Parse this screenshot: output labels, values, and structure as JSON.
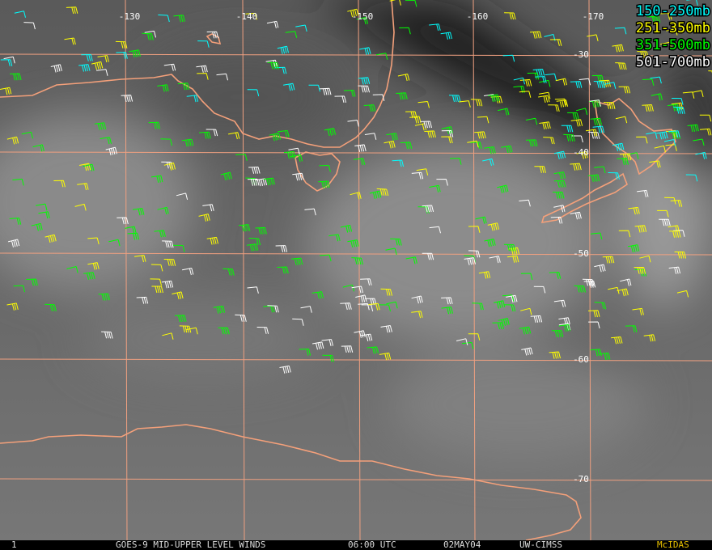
{
  "map": {
    "longitude_labels": [
      "-130",
      "-140",
      "-150",
      "-160",
      "-170"
    ],
    "latitude_labels": [
      "-30",
      "-40",
      "-50",
      "-60",
      "-70"
    ],
    "legend": [
      {
        "label": "150-250mb",
        "color": "#00ffff"
      },
      {
        "label": "251-350mb",
        "color": "#ffff00"
      },
      {
        "label": "351-500mb",
        "color": "#00ff00"
      },
      {
        "label": "501-700mb",
        "color": "#ffffff"
      }
    ]
  },
  "footer": {
    "frame": "1",
    "title": "GOES-9 MID-UPPER LEVEL WINDS",
    "time": "06:00 UTC",
    "date": "02MAY04",
    "source": "UW-CIMSS",
    "software": "McIDAS"
  }
}
